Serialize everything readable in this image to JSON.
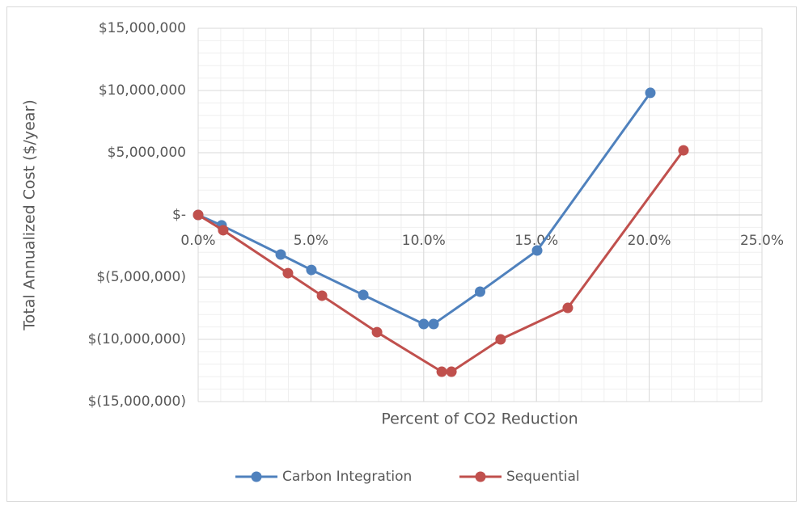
{
  "chart_data": {
    "type": "line",
    "y_axis_label": "Total Annualized Cost ($/year)",
    "x_axis_label": "Percent of CO2 Reduction",
    "xlim": [
      0,
      25
    ],
    "xticks": [
      {
        "value": 0,
        "label": "0.0%"
      },
      {
        "value": 5,
        "label": "5.0%"
      },
      {
        "value": 10,
        "label": "10.0%"
      },
      {
        "value": 15,
        "label": "15.0%"
      },
      {
        "value": 20,
        "label": "20.0%"
      },
      {
        "value": 25,
        "label": "25.0%"
      }
    ],
    "ylim": [
      -15000000,
      15000000
    ],
    "yticks": [
      {
        "value": -15000000,
        "label": "$(15,000,000)"
      },
      {
        "value": -10000000,
        "label": "$(10,000,000)"
      },
      {
        "value": -5000000,
        "label": "$(5,000,000)"
      },
      {
        "value": 0,
        "label": "$-"
      },
      {
        "value": 5000000,
        "label": "$5,000,000"
      },
      {
        "value": 10000000,
        "label": "$10,000,000"
      },
      {
        "value": 15000000,
        "label": "$15,000,000"
      }
    ],
    "grid": true,
    "minor_xstep": 1,
    "minor_ystep": 1000000,
    "legend": "bottom",
    "series": [
      {
        "name": "Carbon Integration",
        "color": "#4f81bd",
        "x": [
          0,
          1.04,
          3.66,
          5.02,
          7.32,
          10.0,
          10.44,
          12.5,
          15.03,
          20.05
        ],
        "values": [
          0,
          -840000,
          -3180000,
          -4420000,
          -6430000,
          -8770000,
          -8770000,
          -6170000,
          -2860000,
          9810000
        ]
      },
      {
        "name": "Sequential",
        "color": "#c0504d",
        "x": [
          0,
          1.11,
          3.98,
          5.49,
          7.93,
          10.8,
          11.23,
          13.41,
          16.39,
          21.52
        ],
        "values": [
          0,
          -1230000,
          -4680000,
          -6490000,
          -9420000,
          -12600000,
          -12600000,
          -10000000,
          -7470000,
          5190000
        ]
      }
    ]
  }
}
